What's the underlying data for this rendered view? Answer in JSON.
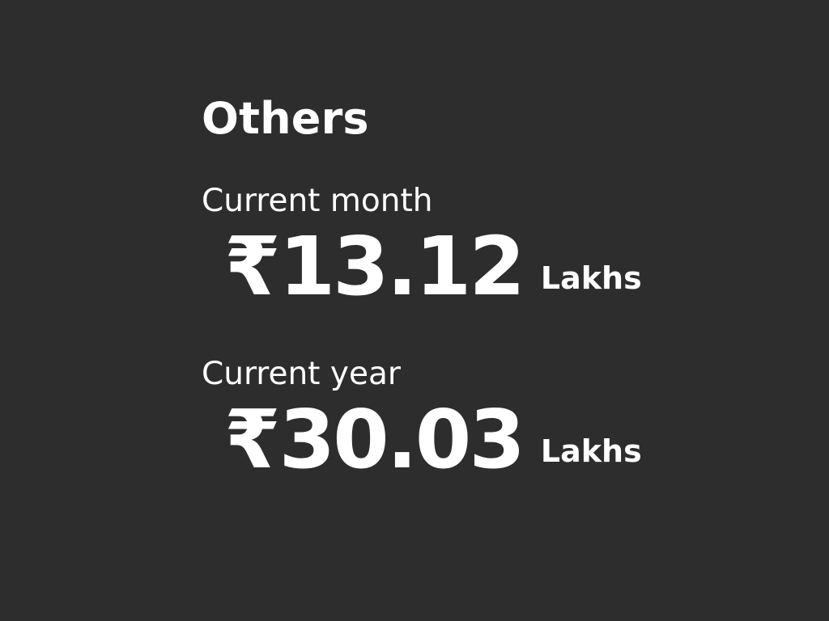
{
  "section": {
    "title": "Others"
  },
  "metrics": {
    "current_month": {
      "label": "Current month",
      "currency": "₹",
      "amount": "13.12",
      "unit": "Lakhs"
    },
    "current_year": {
      "label": "Current year",
      "currency": "₹",
      "amount": "30.03",
      "unit": "Lakhs"
    }
  },
  "colors": {
    "background": "#2d2d2d",
    "text": "#ffffff"
  }
}
